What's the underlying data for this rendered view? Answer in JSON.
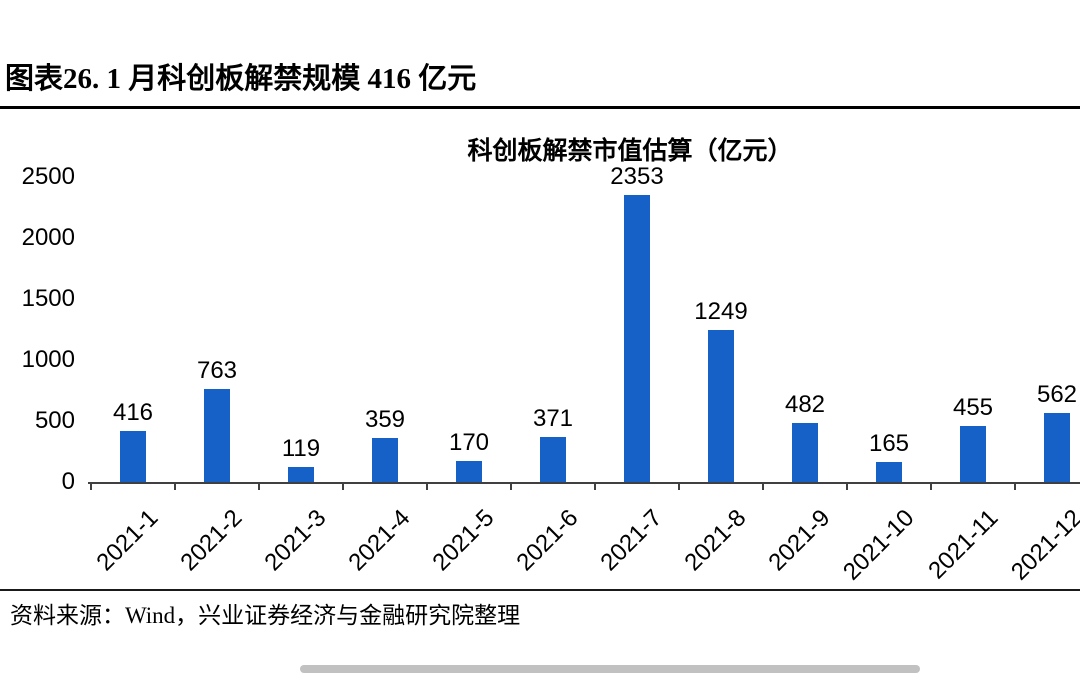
{
  "header": {
    "title": "图表26. 1 月科创板解禁规模 416 亿元"
  },
  "chart_data": {
    "type": "bar",
    "title": "科创板解禁市值估算（亿元）",
    "categories": [
      "2021-1",
      "2021-2",
      "2021-3",
      "2021-4",
      "2021-5",
      "2021-6",
      "2021-7",
      "2021-8",
      "2021-9",
      "2021-10",
      "2021-11",
      "2021-12"
    ],
    "values": [
      416,
      763,
      119,
      359,
      170,
      371,
      2353,
      1249,
      482,
      165,
      455,
      562
    ],
    "xlabel": "",
    "ylabel": "",
    "ylim": [
      0,
      2500
    ],
    "yticks": [
      0,
      500,
      1000,
      1500,
      2000,
      2500
    ],
    "grid": false,
    "legend": "none",
    "data_labels": true,
    "bar_color": "#1561C7",
    "axis_color": "#404040"
  },
  "footer": {
    "source": "资料来源：Wind，兴业证券经济与金融研究院整理"
  }
}
